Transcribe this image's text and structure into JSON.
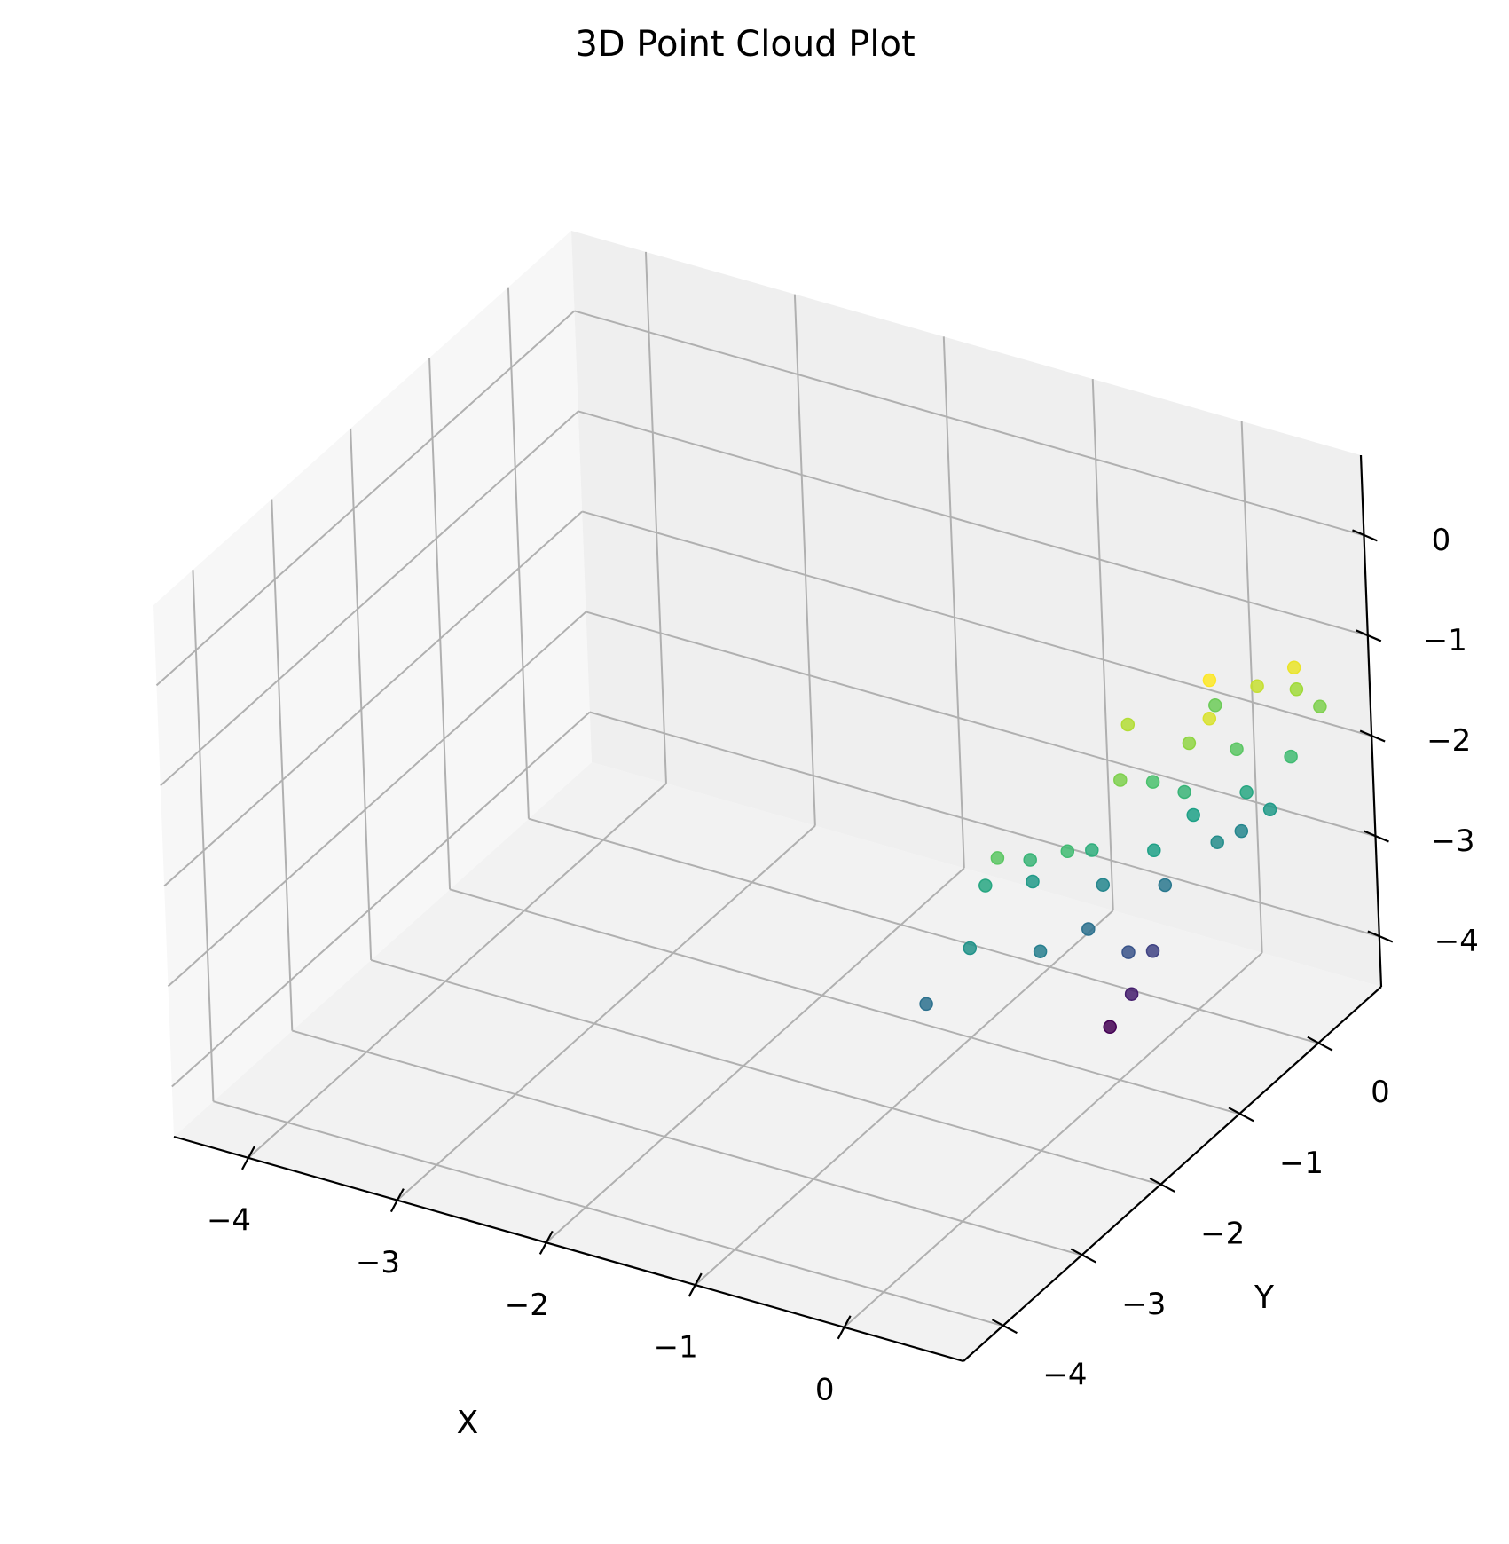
{
  "chart_data": {
    "type": "scatter",
    "projection": "3d",
    "title": "3D Point Cloud Plot",
    "xlabel": "X",
    "ylabel": "Y",
    "zlabel": "",
    "xlim": [
      -4.5,
      0.8
    ],
    "ylim": [
      -4.5,
      0.8
    ],
    "zlim": [
      -4.5,
      0.8
    ],
    "xticks": [
      -4,
      -3,
      -2,
      -1,
      0
    ],
    "yticks": [
      -4,
      -3,
      -2,
      -1,
      0
    ],
    "zticks": [
      -4,
      -3,
      -2,
      -1,
      0
    ],
    "xtick_labels": [
      "−4",
      "−3",
      "−2",
      "−1",
      "0"
    ],
    "ytick_labels": [
      "−4",
      "−3",
      "−2",
      "−1",
      "0"
    ],
    "ztick_labels": [
      "−4",
      "−3",
      "−2",
      "−1",
      "0"
    ],
    "grid": true,
    "colormap": "viridis",
    "colormap_stops": [
      "#440154",
      "#46327e",
      "#365c8d",
      "#277f8e",
      "#1fa187",
      "#4ac16d",
      "#a0da39",
      "#fde725"
    ],
    "points": [
      [
        0.2,
        -1.2,
        -3.0
      ],
      [
        0.1,
        -1.5,
        -2.6
      ],
      [
        -0.1,
        -1.8,
        -2.0
      ],
      [
        0.3,
        -0.9,
        -2.5
      ],
      [
        0.4,
        -0.7,
        -1.9
      ],
      [
        0.6,
        -0.4,
        -1.8
      ],
      [
        0.0,
        -2.0,
        -1.6
      ],
      [
        0.2,
        -1.6,
        -1.7
      ],
      [
        0.5,
        -0.6,
        -2.2
      ],
      [
        0.3,
        -1.0,
        -1.4
      ],
      [
        -0.2,
        -2.2,
        -1.8
      ],
      [
        0.7,
        -0.3,
        -2.0
      ],
      [
        0.1,
        -1.3,
        -2.3
      ],
      [
        0.4,
        -0.8,
        -1.6
      ],
      [
        0.2,
        -1.9,
        -1.5
      ],
      [
        0.6,
        -0.5,
        -1.3
      ],
      [
        0.8,
        -0.2,
        -1.5
      ],
      [
        0.8,
        -0.1,
        -0.9
      ],
      [
        0.5,
        -0.9,
        -1.0
      ],
      [
        0.7,
        -0.4,
        -0.7
      ],
      [
        0.3,
        -1.4,
        -1.1
      ],
      [
        0.0,
        -2.4,
        -1.3
      ],
      [
        0.9,
        0.0,
        -1.1
      ],
      [
        0.6,
        -0.8,
        -0.4
      ],
      [
        0.2,
        -1.1,
        -0.8
      ],
      [
        -0.1,
        -2.6,
        -2.1
      ],
      [
        0.4,
        -1.2,
        -1.9
      ],
      [
        0.1,
        -2.1,
        -2.4
      ],
      [
        -0.3,
        -2.8,
        -2.6
      ],
      [
        0.5,
        -0.3,
        -2.3
      ],
      [
        0.2,
        -0.9,
        -3.2
      ],
      [
        0.1,
        -1.0,
        -3.6
      ],
      [
        0.0,
        -1.1,
        -3.9
      ],
      [
        0.3,
        -0.2,
        -1.2
      ],
      [
        0.7,
        -1.0,
        -0.6
      ],
      [
        0.9,
        -0.3,
        -0.5
      ]
    ]
  }
}
